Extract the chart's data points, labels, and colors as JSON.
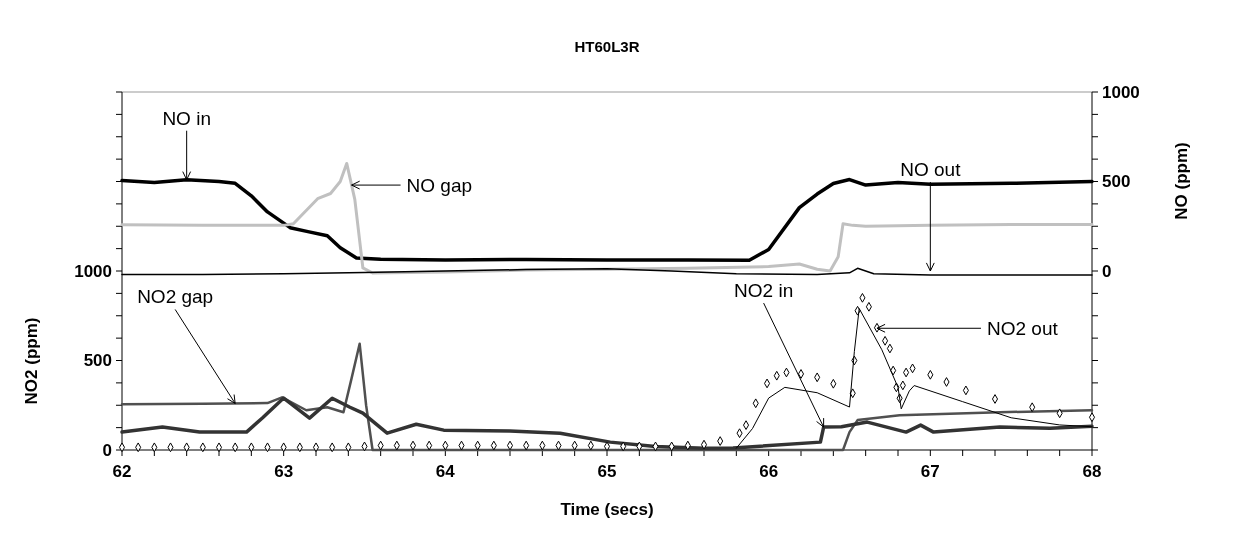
{
  "chart_data": {
    "type": "line",
    "title": "HT60L3R",
    "xlabel": "Time (secs)",
    "ylabel": "NO2 (ppm)",
    "y2label": "NO (ppm)",
    "xlim": [
      62,
      68
    ],
    "xticks": [
      62,
      {
        "value": 62.2,
        "label": null
      },
      {
        "value": 62.4,
        "label": null
      },
      {
        "value": 62.6,
        "label": null
      },
      {
        "value": 62.8,
        "label": null
      },
      63,
      {
        "value": 63.2,
        "label": null
      },
      {
        "value": 63.4,
        "label": null
      },
      {
        "value": 63.6,
        "label": null
      },
      {
        "value": 63.8,
        "label": null
      },
      64,
      {
        "value": 64.2,
        "label": null
      },
      {
        "value": 64.4,
        "label": null
      },
      {
        "value": 64.6,
        "label": null
      },
      {
        "value": 64.8,
        "label": null
      },
      65,
      {
        "value": 65.2,
        "label": null
      },
      {
        "value": 65.4,
        "label": null
      },
      {
        "value": 65.6,
        "label": null
      },
      {
        "value": 65.8,
        "label": null
      },
      66,
      {
        "value": 66.2,
        "label": null
      },
      {
        "value": 66.4,
        "label": null
      },
      {
        "value": 66.6,
        "label": null
      },
      {
        "value": 66.8,
        "label": null
      },
      67,
      {
        "value": 67.2,
        "label": null
      },
      {
        "value": 67.4,
        "label": null
      },
      {
        "value": 67.6,
        "label": null
      },
      {
        "value": 67.8,
        "label": null
      },
      68
    ],
    "ylim": [
      0,
      2000
    ],
    "yticks": [
      0,
      {
        "value": 125,
        "label": null
      },
      {
        "value": 250,
        "label": null
      },
      {
        "value": 375,
        "label": null
      },
      500,
      {
        "value": 625,
        "label": null
      },
      {
        "value": 750,
        "label": null
      },
      {
        "value": 875,
        "label": null
      },
      1000,
      {
        "value": 1125,
        "label": null
      },
      {
        "value": 1250,
        "label": null
      },
      {
        "value": 1375,
        "label": null
      },
      {
        "value": 1500,
        "label": null
      },
      {
        "value": 1625,
        "label": null
      },
      {
        "value": 1750,
        "label": null
      },
      {
        "value": 1875,
        "label": null
      },
      {
        "value": 2000,
        "label": null
      }
    ],
    "y2lim": [
      -1000,
      1000
    ],
    "y2ticks": [
      {
        "value": -1000,
        "label": null
      },
      {
        "value": -875,
        "label": null
      },
      {
        "value": -750,
        "label": null
      },
      {
        "value": -625,
        "label": null
      },
      {
        "value": -500,
        "label": null
      },
      {
        "value": -375,
        "label": null
      },
      {
        "value": -250,
        "label": null
      },
      {
        "value": -125,
        "label": null
      },
      0,
      {
        "value": 125,
        "label": null
      },
      {
        "value": 250,
        "label": null
      },
      {
        "value": 375,
        "label": null
      },
      500,
      {
        "value": 625,
        "label": null
      },
      {
        "value": 750,
        "label": null
      },
      {
        "value": 875,
        "label": null
      },
      1000
    ],
    "grid": false,
    "series": [
      {
        "color": "#000000",
        "axis": "y2",
        "x": [
          62,
          62.2,
          62.4,
          62.6,
          62.7,
          62.8,
          62.9,
          63.04,
          63.15,
          63.27,
          63.35,
          63.45,
          63.6,
          64,
          64.5,
          65,
          65.5,
          65.88,
          66,
          66.19,
          66.3,
          66.4,
          66.5,
          66.6,
          66.8,
          67,
          67.5,
          68
        ],
        "values": [
          505,
          495,
          510,
          500,
          490,
          420,
          330,
          242,
          220,
          197,
          130,
          73,
          65,
          62,
          64,
          62,
          62,
          60,
          120,
          354,
          430,
          489,
          511,
          480,
          495,
          485,
          490,
          500
        ]
      },
      {
        "color": "#c0c0c0",
        "axis": "y2",
        "x": [
          62,
          62.5,
          63,
          63.06,
          63.21,
          63.29,
          63.35,
          63.39,
          63.44,
          63.49,
          63.55,
          64,
          64.5,
          65,
          65.5,
          66,
          66.19,
          66.3,
          66.38,
          66.43,
          66.46,
          66.52,
          66.6,
          67,
          67.5,
          68
        ],
        "values": [
          258,
          255,
          255,
          264,
          404,
          433,
          500,
          601,
          400,
          17,
          -11,
          -5,
          5,
          10,
          15,
          25,
          39,
          10,
          0,
          80,
          264,
          255,
          250,
          255,
          260,
          260
        ]
      },
      {
        "color": "#000000",
        "axis": "y2",
        "x": [
          62,
          62.5,
          63,
          63.5,
          64,
          64.5,
          65,
          65.4,
          65.8,
          66.3,
          66.5,
          66.55,
          66.65,
          67,
          67.5,
          68
        ],
        "values": [
          -20,
          -20,
          -15,
          -8,
          0,
          8,
          12,
          0,
          -15,
          -20,
          -10,
          15,
          -15,
          -22,
          -22,
          -22
        ]
      },
      {
        "color": "#505050",
        "x": [
          62,
          62.5,
          62.9,
          62.99,
          63.14,
          63.27,
          63.37,
          63.42,
          63.47,
          63.51,
          63.55,
          66.46,
          66.5,
          66.55,
          66.81,
          67.43,
          68
        ],
        "values": [
          255,
          258,
          262,
          294,
          222,
          239,
          211,
          400,
          594,
          250,
          0,
          0,
          100,
          167,
          194,
          211,
          222
        ]
      },
      {
        "color": "#333333",
        "x": [
          62,
          62.25,
          62.48,
          62.77,
          62.87,
          63.0,
          63.16,
          63.3,
          63.41,
          63.49,
          63.64,
          63.82,
          63.99,
          64.4,
          64.71,
          65.02,
          65.3,
          65.6,
          65.78,
          66.32,
          66.34,
          66.45,
          66.61,
          66.85,
          66.94,
          67.02,
          67.43,
          67.74,
          68
        ],
        "values": [
          100,
          128,
          100,
          100,
          180,
          290,
          178,
          289,
          239,
          206,
          94,
          144,
          111,
          106,
          94,
          44,
          20,
          10,
          11,
          44,
          128,
          130,
          156,
          100,
          139,
          100,
          128,
          122,
          133
        ]
      },
      {
        "color": "#000000",
        "type": "scatter",
        "marker": "diamond",
        "x": [
          62,
          62.1,
          62.2,
          62.3,
          62.4,
          62.5,
          62.6,
          62.7,
          62.8,
          62.9,
          63,
          63.1,
          63.2,
          63.3,
          63.4,
          63.5,
          63.6,
          63.7,
          63.8,
          63.9,
          64,
          64.1,
          64.2,
          64.3,
          64.4,
          64.5,
          64.6,
          64.7,
          64.8,
          64.9,
          65,
          65.1,
          65.2,
          65.3,
          65.4,
          65.5,
          65.6,
          65.7,
          65.82,
          65.86,
          65.92,
          65.99,
          66.05,
          66.11,
          66.2,
          66.3,
          66.4,
          66.52,
          66.53,
          66.55,
          66.58,
          66.62,
          66.67,
          66.72,
          66.75,
          66.77,
          66.79,
          66.81,
          66.83,
          66.85,
          66.89,
          67,
          67.1,
          67.22,
          67.4,
          67.63,
          67.8,
          68
        ],
        "values": [
          15,
          15,
          15,
          15,
          15,
          15,
          15,
          15,
          15,
          15,
          15,
          15,
          15,
          15,
          15,
          20,
          25,
          25,
          25,
          25,
          25,
          25,
          25,
          25,
          25,
          25,
          25,
          25,
          25,
          25,
          20,
          20,
          20,
          20,
          20,
          25,
          30,
          50,
          94,
          139,
          261,
          372,
          415,
          433,
          425,
          406,
          370,
          317,
          500,
          778,
          850,
          800,
          683,
          610,
          567,
          444,
          350,
          289,
          361,
          433,
          456,
          420,
          380,
          333,
          285,
          239,
          205,
          183
        ]
      },
      {
        "color": "#000000",
        "x": [
          65.8,
          65.9,
          66.0,
          66.1,
          66.3,
          66.5,
          66.53,
          66.56,
          66.7,
          66.8,
          66.82,
          66.87,
          66.9,
          67.2,
          67.5,
          67.8,
          68
        ],
        "values": [
          10,
          120,
          290,
          350,
          320,
          240,
          550,
          790,
          560,
          350,
          230,
          330,
          360,
          270,
          180,
          140,
          130
        ]
      }
    ],
    "annotations": [
      {
        "text": "NO in",
        "x": 62.4,
        "y": 1510
      },
      {
        "text": "NO gap",
        "x": 63.42,
        "y": 1480
      },
      {
        "text": "NO out",
        "x": 67.0,
        "y": 1000
      },
      {
        "text": "NO2 gap",
        "x": 62.7,
        "y": 260
      },
      {
        "text": "NO2 in",
        "x": 66.34,
        "y": 128
      },
      {
        "text": "NO2 out",
        "x": 66.67,
        "y": 680
      }
    ]
  }
}
